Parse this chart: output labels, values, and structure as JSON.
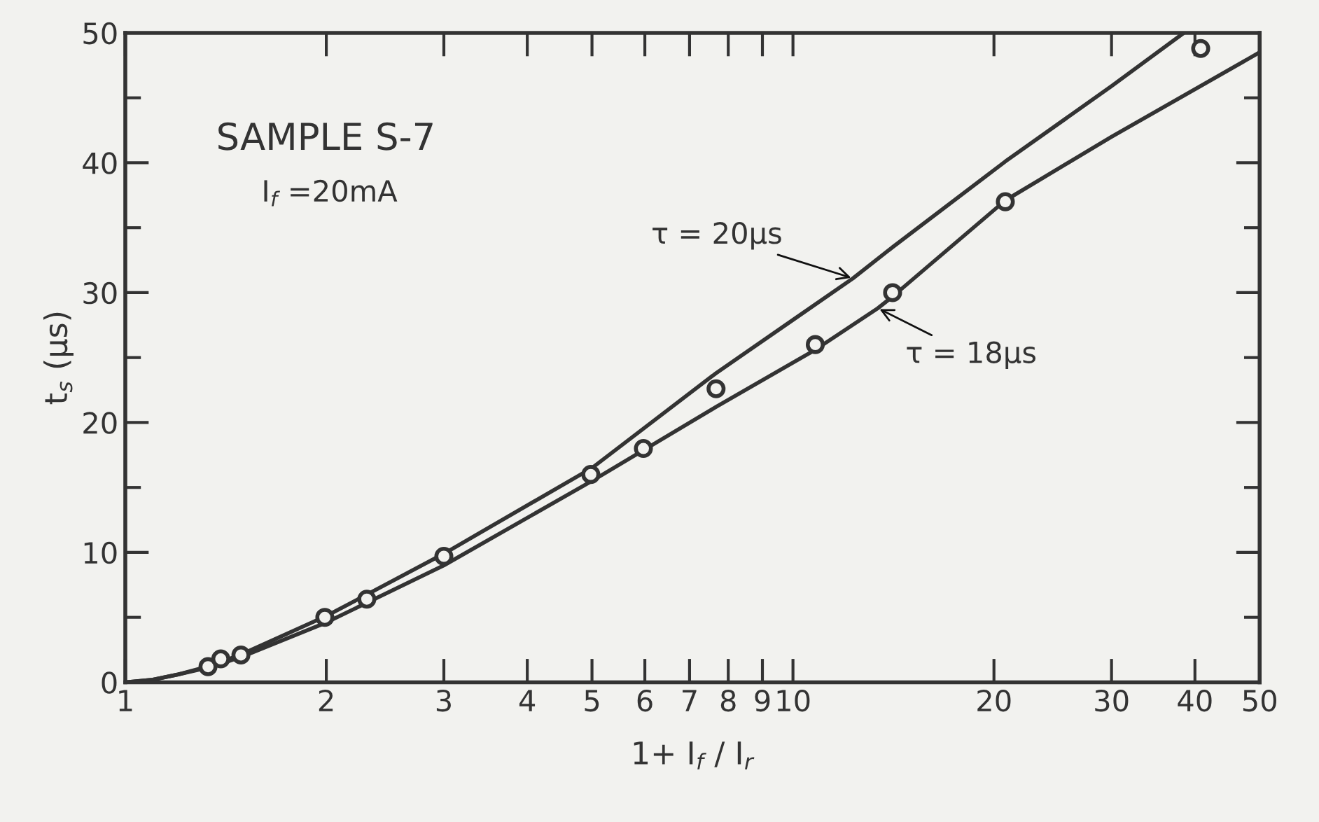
{
  "chart_data": {
    "type": "line",
    "xlabel": "1+ I$_{f}$ / I$_{r}$",
    "ylabel": "t$_{s}$ (µs)",
    "log": "x",
    "xlim": [
      1,
      50
    ],
    "ylim": [
      0,
      50
    ],
    "xticks": [
      1,
      2,
      3,
      4,
      5,
      6,
      7,
      8,
      9,
      10,
      20,
      30,
      40,
      50
    ],
    "yticks": [
      0,
      {
        "value": 5,
        "label": null
      },
      10,
      {
        "value": 15,
        "label": null
      },
      20,
      {
        "value": 25,
        "label": null
      },
      30,
      {
        "value": 35,
        "label": null
      },
      40,
      {
        "value": 45,
        "label": null
      },
      50
    ],
    "grid": false,
    "legend": false,
    "annotations": [
      "SAMPLE S-7",
      "I$_{f}$ =20mA"
    ],
    "series": [
      {
        "name": "τ = 20µs",
        "color": "#333333",
        "marker": "none",
        "x": [
          1,
          1.1,
          1.2,
          1.35,
          1.5,
          2,
          3,
          5,
          7.67,
          10,
          12.3,
          14.1,
          20.8,
          30,
          38.5
        ],
        "values": [
          0,
          0.2,
          0.6,
          1.3,
          2.2,
          5.1,
          9.9,
          16.5,
          23.8,
          27.9,
          31.1,
          33.5,
          40.1,
          45.9,
          50
        ]
      },
      {
        "name": "τ = 18µs",
        "color": "#333333",
        "marker": "none",
        "x": [
          1,
          1.1,
          1.2,
          1.35,
          1.5,
          2,
          3,
          5,
          7.67,
          10.8,
          13.4,
          14.1,
          20.8,
          30,
          50
        ],
        "values": [
          0,
          0.2,
          0.6,
          1.2,
          2.0,
          4.6,
          9.0,
          15.5,
          21.2,
          25.6,
          28.8,
          29.7,
          37.1,
          42.0,
          48.5
        ]
      },
      {
        "type": "scatter",
        "color": "#333333",
        "marker": "circle",
        "x": [
          1.33,
          1.39,
          1.49,
          1.99,
          2.3,
          3.0,
          4.98,
          5.97,
          7.67,
          10.8,
          14.1,
          20.8,
          40.8
        ],
        "values": [
          1.2,
          1.8,
          2.1,
          5.0,
          6.4,
          9.7,
          16.0,
          18.0,
          22.6,
          26.0,
          30.0,
          37.0,
          48.8
        ]
      }
    ]
  }
}
